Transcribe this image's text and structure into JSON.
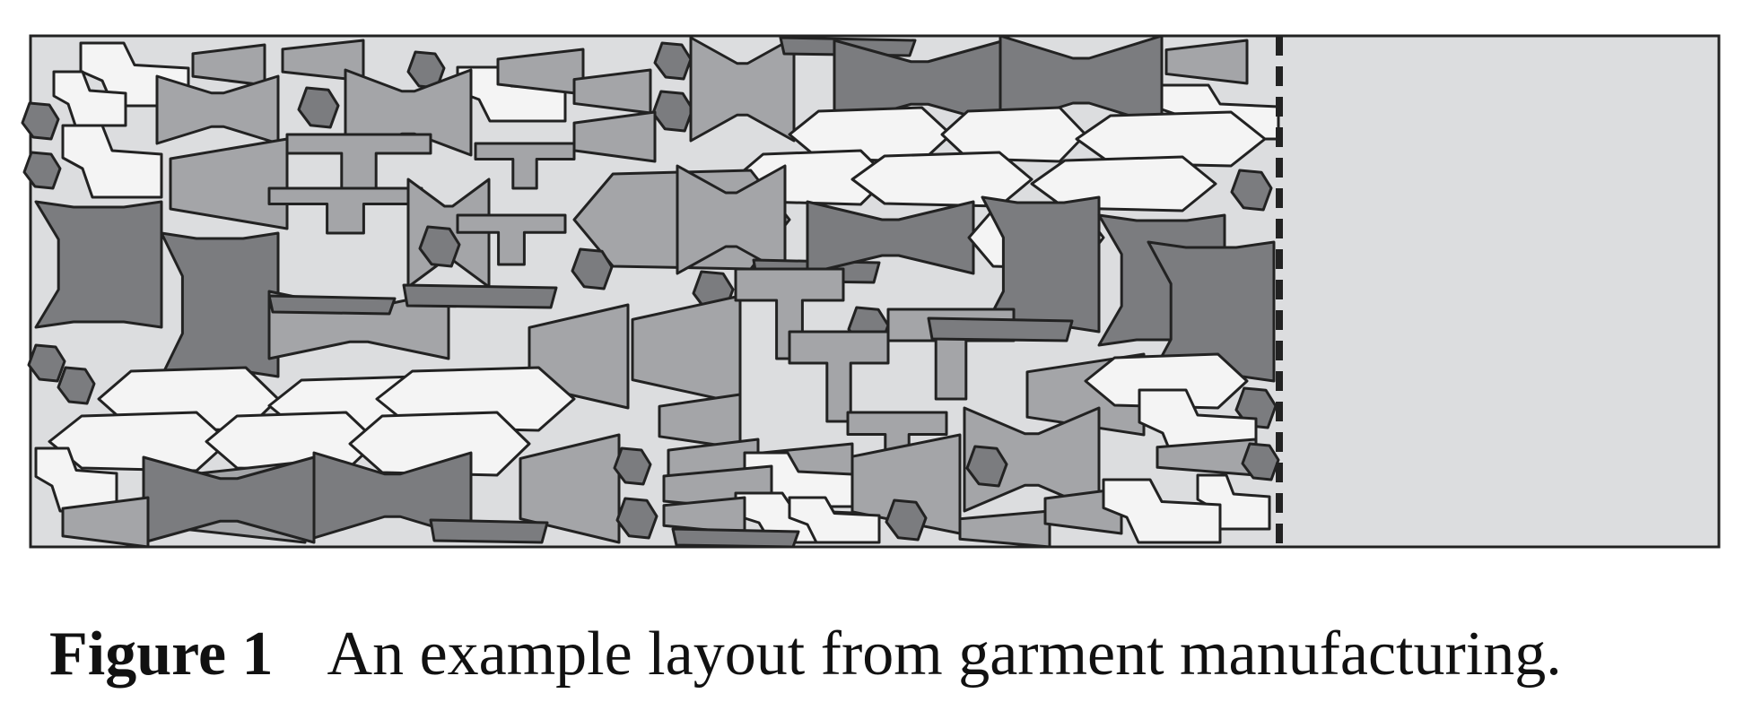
{
  "figure": {
    "label": "Figure 1",
    "caption": "An example layout from garment manufacturing."
  },
  "colors": {
    "sheet": "#dcdddf",
    "outline": "#222222",
    "piece_light": "#f4f4f4",
    "piece_mid": "#a4a5a8",
    "piece_dark": "#7b7c7f"
  }
}
